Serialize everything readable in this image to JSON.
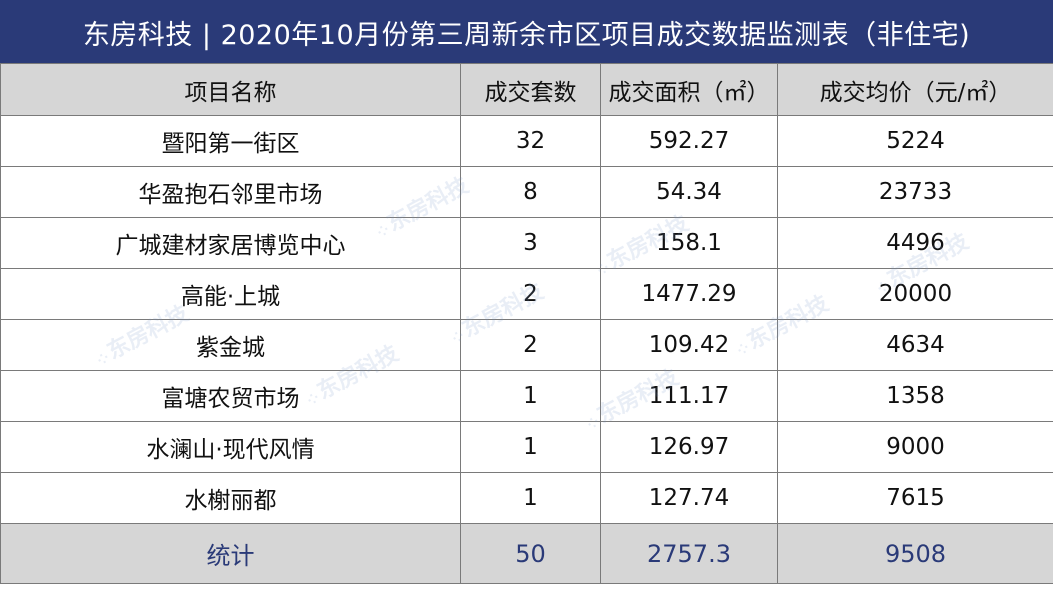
{
  "title": "东房科技 | 2020年10月份第三周新余市区项目成交数据监测表（非住宅)",
  "watermark_text": "东房科技",
  "colors": {
    "title_bg": "#2a3a78",
    "header_bg": "#d6d6d6",
    "total_text": "#2a3a78"
  },
  "table": {
    "headers": [
      "项目名称",
      "成交套数",
      "成交面积（㎡）",
      "成交均价（元/㎡）"
    ],
    "rows": [
      [
        "暨阳第一街区",
        "32",
        "592.27",
        "5224"
      ],
      [
        "华盈抱石邻里市场",
        "8",
        "54.34",
        "23733"
      ],
      [
        "广城建材家居博览中心",
        "3",
        "158.1",
        "4496"
      ],
      [
        "高能·上城",
        "2",
        "1477.29",
        "20000"
      ],
      [
        "紫金城",
        "2",
        "109.42",
        "4634"
      ],
      [
        "富塘农贸市场",
        "1",
        "111.17",
        "1358"
      ],
      [
        "水澜山·现代风情",
        "1",
        "126.97",
        "9000"
      ],
      [
        "水榭丽都",
        "1",
        "127.74",
        "7615"
      ]
    ],
    "total": [
      "统计",
      "50",
      "2757.3",
      "9508"
    ]
  }
}
